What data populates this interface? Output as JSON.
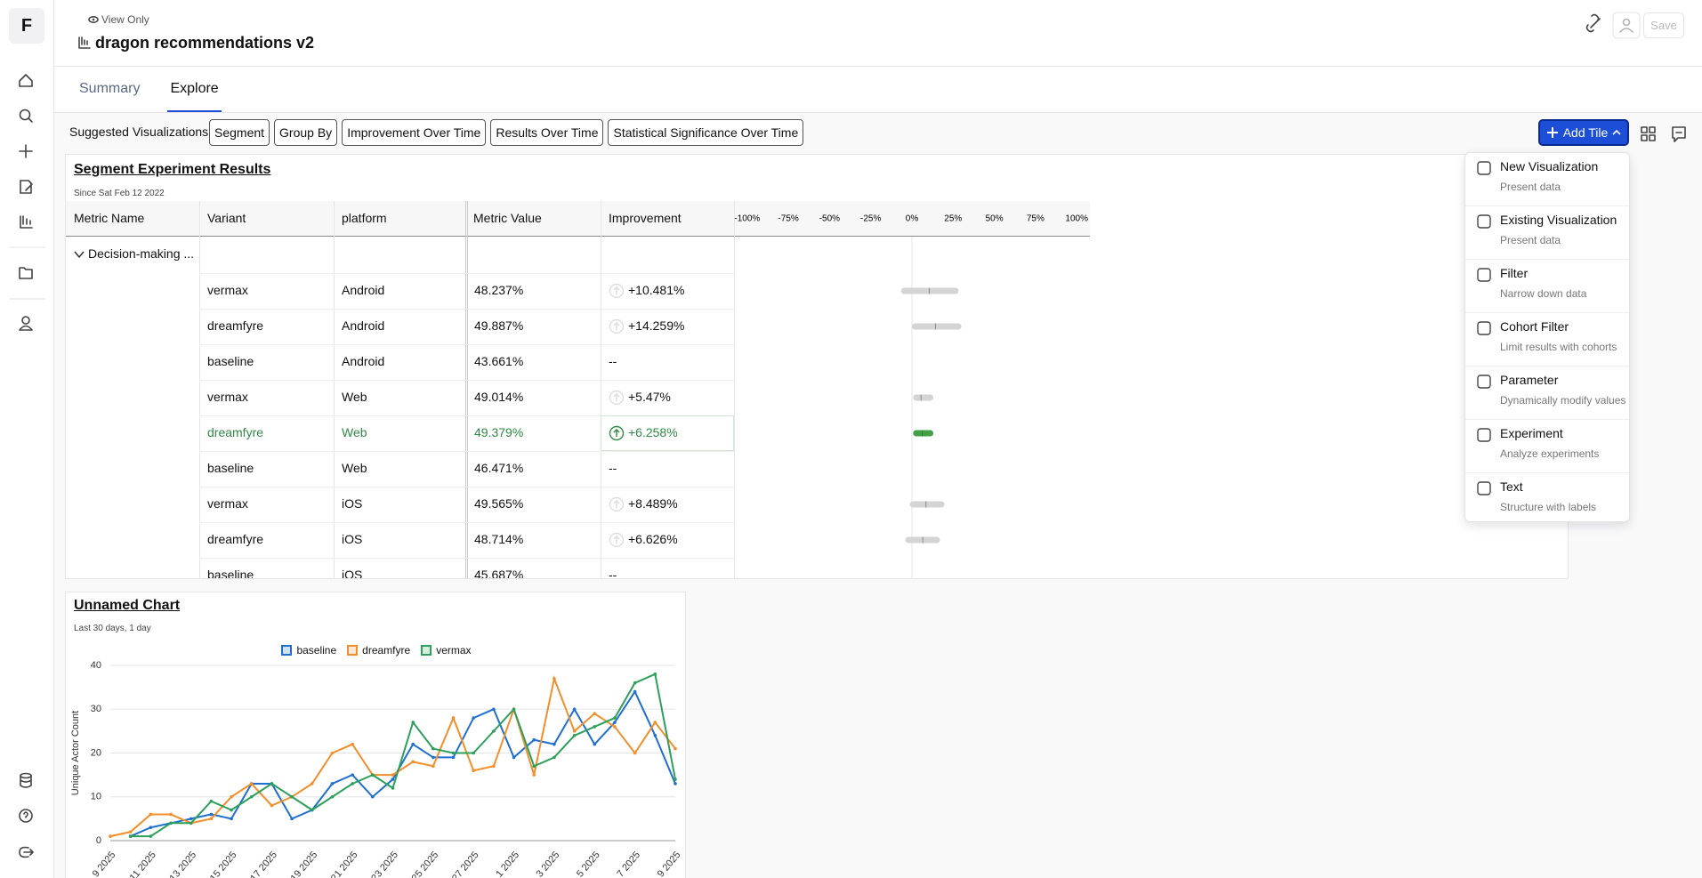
{
  "sidebar": {
    "logo": "F"
  },
  "header": {
    "badge": "View Only",
    "title": "dragon recommendations v2",
    "save": "Save"
  },
  "tabs": [
    "Summary",
    "Explore"
  ],
  "toolbar": {
    "label": "Suggested Visualizations:",
    "chips": [
      "Segment",
      "Group By",
      "Improvement Over Time",
      "Results Over Time",
      "Statistical Significance Over Time"
    ],
    "add_tile": "Add Tile"
  },
  "segment_results": {
    "title": "Segment Experiment Results",
    "subtitle": "Since Sat Feb 12 2022",
    "columns": [
      "Metric Name",
      "Variant",
      "platform",
      "Metric Value",
      "Improvement"
    ],
    "axis": {
      "lim": [
        -108,
        108
      ],
      "ticks": [
        {
          "value": -100,
          "label": "-100%"
        },
        {
          "value": -75,
          "label": "-75%"
        },
        {
          "value": -50,
          "label": "-50%"
        },
        {
          "value": -25,
          "label": "-25%"
        },
        {
          "value": 0,
          "label": "0%"
        },
        {
          "value": 25,
          "label": "25%"
        },
        {
          "value": 50,
          "label": "50%"
        },
        {
          "value": 75,
          "label": "75%"
        },
        {
          "value": 100,
          "label": "100%"
        }
      ]
    },
    "group": "Decision-making ...",
    "rows": [
      {
        "variant": "vermax",
        "platform": "Android",
        "metric_value": "48.237%",
        "improvement": 10.481,
        "improvement_label": "+10.481%",
        "ci": [
          -6.6,
          28.3
        ],
        "significant": false
      },
      {
        "variant": "dreamfyre",
        "platform": "Android",
        "metric_value": "49.887%",
        "improvement": 14.259,
        "improvement_label": "+14.259%",
        "ci": [
          0,
          30
        ],
        "significant": false
      },
      {
        "variant": "baseline",
        "platform": "Android",
        "metric_value": "43.661%",
        "improvement": null,
        "improvement_label": "--",
        "ci": null,
        "significant": false
      },
      {
        "variant": "vermax",
        "platform": "Web",
        "metric_value": "49.014%",
        "improvement": 5.47,
        "improvement_label": "+5.47%",
        "ci": [
          0.7,
          13
        ],
        "significant": false
      },
      {
        "variant": "dreamfyre",
        "platform": "Web",
        "metric_value": "49.379%",
        "improvement": 6.258,
        "improvement_label": "+6.258%",
        "ci": [
          0.7,
          13
        ],
        "significant": true
      },
      {
        "variant": "baseline",
        "platform": "Web",
        "metric_value": "46.471%",
        "improvement": null,
        "improvement_label": "--",
        "ci": null,
        "significant": false
      },
      {
        "variant": "vermax",
        "platform": "iOS",
        "metric_value": "49.565%",
        "improvement": 8.489,
        "improvement_label": "+8.489%",
        "ci": [
          -1.3,
          19.7
        ],
        "significant": false
      },
      {
        "variant": "dreamfyre",
        "platform": "iOS",
        "metric_value": "48.714%",
        "improvement": 6.626,
        "improvement_label": "+6.626%",
        "ci": [
          -4,
          17
        ],
        "significant": false
      },
      {
        "variant": "baseline",
        "platform": "iOS",
        "metric_value": "45.687%",
        "improvement": null,
        "improvement_label": "--",
        "ci": null,
        "significant": false
      }
    ]
  },
  "menu": {
    "items": [
      {
        "title": "New Visualization",
        "description": "Present data"
      },
      {
        "title": "Existing Visualization",
        "description": "Present data"
      },
      {
        "title": "Filter",
        "description": "Narrow down data"
      },
      {
        "title": "Cohort Filter",
        "description": "Limit results with cohorts"
      },
      {
        "title": "Parameter",
        "description": "Dynamically modify values"
      },
      {
        "title": "Experiment",
        "description": "Analyze experiments"
      },
      {
        "title": "Text",
        "description": "Structure with labels"
      }
    ]
  },
  "chart_data": {
    "type": "line",
    "title": "Unnamed Chart",
    "subtitle": "Last 30 days, 1 day",
    "y_label": "Unique Actor Count",
    "categories": [
      "9 2025",
      null,
      "11 2025",
      null,
      "13 2025",
      null,
      "15 2025",
      null,
      "17 2025",
      null,
      "19 2025",
      null,
      "21 2025",
      null,
      "23 2025",
      null,
      "25 2025",
      null,
      "27 2025",
      null,
      "1 2025",
      null,
      "3 2025",
      null,
      "5 2025",
      null,
      "7 2025",
      null,
      "9 2025"
    ],
    "series": [
      {
        "name": "baseline",
        "color": "#1f6fd1",
        "values": [
          null,
          1,
          3,
          4,
          5,
          6,
          5,
          13,
          13,
          5,
          7,
          13,
          15,
          10,
          14,
          22,
          19,
          19,
          28,
          30,
          19,
          23,
          22,
          30,
          22,
          27,
          34,
          24,
          13
        ]
      },
      {
        "name": "dreamfyre",
        "color": "#f28e2b",
        "values": [
          1,
          2,
          6,
          6,
          4,
          5,
          10,
          13,
          8,
          10,
          13,
          20,
          22,
          15,
          15,
          18,
          17,
          28,
          16,
          17,
          30,
          15,
          37,
          25,
          29,
          26,
          20,
          27,
          21
        ]
      },
      {
        "name": "vermax",
        "color": "#2ca05a",
        "values": [
          null,
          1,
          1,
          4,
          4,
          9,
          7,
          10,
          13,
          10,
          7,
          10,
          13,
          15,
          12,
          27,
          21,
          20,
          20,
          25,
          30,
          17,
          19,
          24,
          26,
          28,
          36,
          38,
          14
        ]
      }
    ],
    "ylim": [
      0,
      40
    ],
    "yticks": [
      0,
      10,
      20,
      30,
      40
    ],
    "grid": true,
    "legend": "top"
  }
}
